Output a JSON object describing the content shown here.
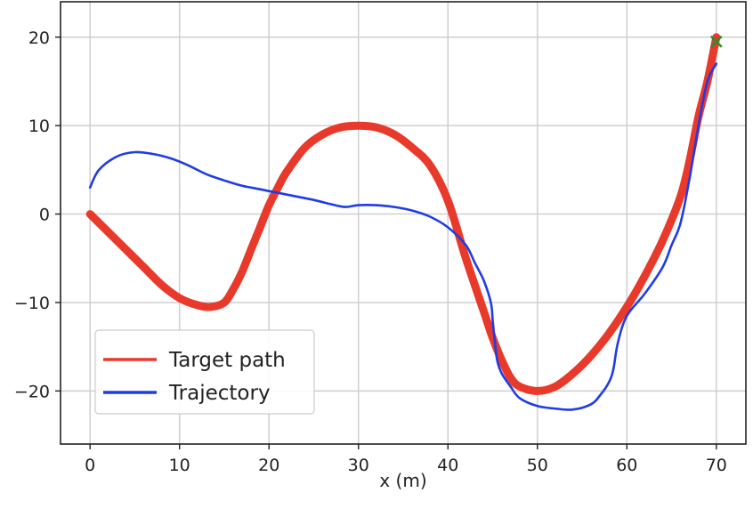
{
  "chart_data": {
    "type": "line",
    "title": "",
    "xlabel": "x (m)",
    "ylabel": "",
    "xlim": [
      -3.3,
      73.3
    ],
    "ylim": [
      -26,
      24
    ],
    "xticks": [
      0,
      10,
      20,
      30,
      40,
      50,
      60,
      70
    ],
    "yticks": [
      20,
      10,
      0,
      -10,
      -20
    ],
    "xtick_labels": [
      "0",
      "10",
      "20",
      "30",
      "40",
      "50",
      "60",
      "70"
    ],
    "ytick_labels": [
      "20",
      "10",
      "0",
      "−10",
      "−20"
    ],
    "grid": true,
    "legend_position": "lower-left",
    "series": [
      {
        "name": "Target path",
        "color": "#e8392b",
        "x": [
          0,
          2,
          4,
          6,
          8,
          10,
          12,
          13.5,
          15,
          16,
          17,
          18,
          19,
          20,
          21,
          22,
          24,
          26,
          28,
          30,
          32,
          34,
          36,
          38,
          40,
          42,
          44,
          45,
          46,
          47,
          48,
          50,
          52,
          54,
          56,
          58,
          60,
          62,
          64,
          66,
          67,
          68,
          69,
          70
        ],
        "y": [
          0,
          -2,
          -4,
          -6,
          -8,
          -9.5,
          -10.3,
          -10.5,
          -10,
          -8.5,
          -6.5,
          -4,
          -1.5,
          1,
          3,
          4.8,
          7.5,
          9,
          9.8,
          10,
          9.8,
          9,
          7.5,
          5.5,
          1.5,
          -5,
          -11,
          -14,
          -16.5,
          -18.5,
          -19.5,
          -20,
          -19.5,
          -18,
          -16,
          -13.5,
          -10.5,
          -7,
          -3,
          2,
          6,
          11,
          15,
          20
        ]
      },
      {
        "name": "Trajectory",
        "color": "#1f3ce6",
        "x": [
          0,
          1,
          3,
          5,
          7,
          9,
          11,
          13,
          15,
          17,
          19,
          21,
          23,
          25,
          27,
          28.5,
          30,
          32,
          34,
          36,
          38,
          40,
          42,
          43,
          44,
          44.8,
          45,
          45.2,
          45.5,
          46,
          47,
          48,
          50,
          52,
          54,
          56,
          57,
          58,
          58.5,
          59,
          60,
          62,
          64,
          65,
          66,
          67,
          68,
          69,
          70
        ],
        "y": [
          3,
          5,
          6.5,
          7,
          6.8,
          6.3,
          5.5,
          4.5,
          3.8,
          3.2,
          2.8,
          2.4,
          2,
          1.6,
          1.1,
          0.8,
          1,
          1,
          0.8,
          0.4,
          -0.3,
          -1.5,
          -3.5,
          -5.5,
          -7.5,
          -10,
          -12,
          -14,
          -16.5,
          -18,
          -19.5,
          -20.8,
          -21.7,
          -22,
          -22.1,
          -21.5,
          -20.5,
          -19,
          -17.5,
          -14.5,
          -11.5,
          -9,
          -6,
          -3.5,
          -1,
          4,
          10,
          15,
          17
        ]
      }
    ],
    "markers": [
      {
        "type": "x",
        "x": 70,
        "y": 19.5,
        "color": "#2e8b2e"
      }
    ],
    "legend": {
      "entries": [
        "Target path",
        "Trajectory"
      ]
    }
  }
}
